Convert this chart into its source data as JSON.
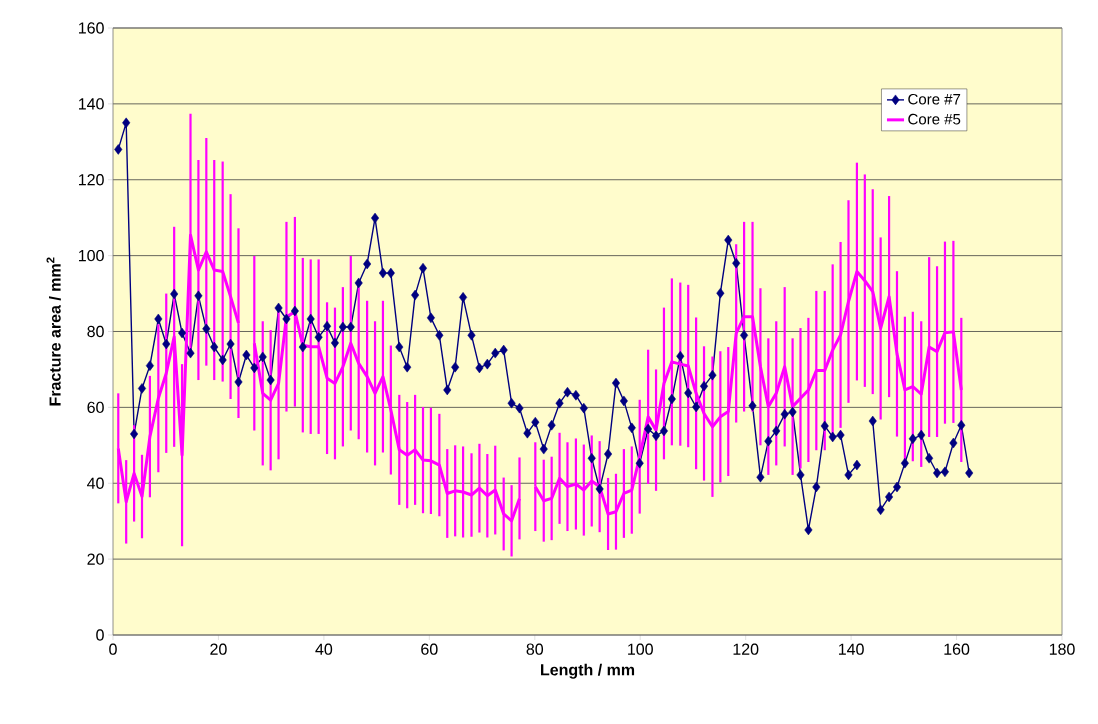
{
  "chart_data": {
    "type": "line",
    "xlabel": "Length / mm",
    "ylabel": "Fracture area / mm$^{2}$",
    "x": [
      1.0,
      2.5,
      4.0,
      5.5,
      7.0,
      8.6,
      10.1,
      11.6,
      13.1,
      14.7,
      16.2,
      17.7,
      19.2,
      20.8,
      22.3,
      23.8,
      25.3,
      26.8,
      28.4,
      29.9,
      31.4,
      32.9,
      34.5,
      36.0,
      37.5,
      39.0,
      40.6,
      42.1,
      43.6,
      45.1,
      46.6,
      48.2,
      49.7,
      51.2,
      52.7,
      54.3,
      55.8,
      57.3,
      58.8,
      60.3,
      61.9,
      63.4,
      64.9,
      66.4,
      68.0,
      69.5,
      71.0,
      72.5,
      74.1,
      75.6,
      77.1,
      78.6,
      80.1,
      81.7,
      83.2,
      84.7,
      86.2,
      87.8,
      89.3,
      90.8,
      92.3,
      93.9,
      95.4,
      96.9,
      98.4,
      99.9,
      101.5,
      103.0,
      104.5,
      106.0,
      107.6,
      109.1,
      110.6,
      112.1,
      113.7,
      115.2,
      116.7,
      118.2,
      119.7,
      121.3,
      122.8,
      124.3,
      125.8,
      127.4,
      128.9,
      130.4,
      131.9,
      133.4,
      135.0,
      136.5,
      138.0,
      139.5,
      141.1,
      142.6,
      144.1,
      145.6,
      147.2,
      148.7,
      150.2,
      151.7,
      153.3,
      154.8,
      156.3,
      157.8,
      159.4,
      160.9,
      162.4
    ],
    "series": [
      {
        "name": "Core #7",
        "color": "#000080",
        "marker": "diamond",
        "values": [
          128,
          135,
          53,
          65,
          71,
          83.3,
          76.7,
          89.9,
          79.6,
          74.3,
          89.4,
          80.7,
          75.9,
          72.5,
          76.7,
          66.7,
          73.8,
          70.4,
          73.3,
          67.2,
          86.2,
          83.3,
          85.4,
          75.9,
          83.3,
          78.5,
          81.4,
          77,
          81.2,
          81.2,
          92.8,
          97.8,
          109.9,
          95.4,
          95.4,
          75.9,
          70.6,
          89.6,
          96.7,
          83.6,
          79,
          64.6,
          70.6,
          89,
          79,
          70.4,
          71.4,
          74.3,
          75.1,
          61.1,
          59.8,
          53.2,
          56.1,
          49,
          55.3,
          61.1,
          64,
          63.2,
          59.8,
          46.6,
          38.5,
          47.7,
          66.4,
          61.7,
          54.6,
          45.3,
          54.3,
          52.5,
          53.8,
          62.2,
          73.5,
          63.8,
          60.1,
          65.6,
          68.5,
          90.1,
          104.1,
          98,
          79,
          60.4,
          41.6,
          51.1,
          53.8,
          58.2,
          58.8,
          42.2,
          27.7,
          39,
          55.1,
          52.2,
          52.7,
          42.2,
          44.8,
          null,
          56.4,
          33,
          36.4,
          39,
          45.3,
          51.7,
          52.7,
          46.6,
          42.7,
          43,
          50.6,
          55.3,
          42.7
        ]
      },
      {
        "name": "Core #5",
        "color": "#ff00ff",
        "marker": "none",
        "values": [
          49.2,
          35.1,
          42.6,
          36.5,
          52.3,
          62.4,
          69,
          78.6,
          47.4,
          105.4,
          96.2,
          101,
          96.2,
          95.8,
          89.2,
          82.2,
          null,
          76.9,
          63.7,
          61.9,
          66.3,
          83.9,
          85.2,
          76.4,
          76,
          76,
          67.7,
          66.3,
          70.7,
          76.9,
          71.6,
          68.1,
          63.7,
          68.1,
          59.3,
          48.8,
          47.4,
          48.8,
          46.1,
          45.9,
          44.8,
          37.3,
          38,
          37.7,
          36.9,
          38.7,
          36.7,
          38.2,
          31.9,
          30.1,
          36,
          null,
          39.1,
          35.4,
          36,
          41.3,
          39.1,
          39.8,
          38.2,
          40.6,
          39.1,
          31.9,
          32.5,
          37.3,
          38.2,
          47,
          57.5,
          54,
          66.3,
          72,
          71.4,
          70.9,
          63.7,
          58.4,
          54.9,
          57.5,
          58.9,
          79.5,
          83.9,
          83.9,
          70.7,
          60.2,
          63.7,
          70.7,
          60.2,
          62.4,
          64.6,
          69.7,
          69.7,
          75.1,
          79.1,
          87.9,
          95.8,
          93.4,
          90.5,
          80.8,
          89.2,
          74.1,
          64.6,
          65.5,
          63.5,
          75.9,
          74.7,
          79.7,
          79.9,
          64.6,
          null
        ],
        "errors": [
          14.5,
          11,
          12.7,
          11,
          16,
          19.5,
          21,
          29,
          24,
          32,
          29,
          30,
          29,
          29,
          27,
          25,
          null,
          23,
          19,
          18.5,
          20,
          25,
          25,
          23,
          23,
          23,
          20,
          20,
          21,
          23,
          20,
          20,
          19,
          20,
          17,
          14.5,
          14,
          14.5,
          14,
          14,
          13.5,
          11.7,
          12,
          12,
          11,
          11.7,
          11,
          11.7,
          9.6,
          9.4,
          10.8,
          null,
          11.7,
          10.8,
          11,
          12,
          11.7,
          12,
          12,
          12,
          12,
          9.5,
          10,
          11.7,
          11.5,
          15,
          17.7,
          16,
          20,
          22,
          21.5,
          21.4,
          20,
          17.7,
          18.5,
          17.3,
          17,
          23.5,
          25,
          25,
          20.7,
          18,
          19,
          21,
          18,
          18.5,
          19,
          21,
          21,
          22.6,
          24.5,
          26.7,
          28.7,
          28,
          27,
          24,
          26.5,
          21.8,
          19.3,
          19.7,
          19.2,
          23.7,
          22.5,
          24,
          24,
          19,
          null
        ]
      }
    ],
    "xlim": [
      0,
      180
    ],
    "ylim": [
      0,
      160
    ],
    "xticks": [
      0,
      20,
      40,
      60,
      80,
      100,
      120,
      140,
      160,
      180
    ],
    "yticks": [
      0,
      20,
      40,
      60,
      80,
      100,
      120,
      140,
      160
    ],
    "grid": "y",
    "legend": "top right"
  }
}
